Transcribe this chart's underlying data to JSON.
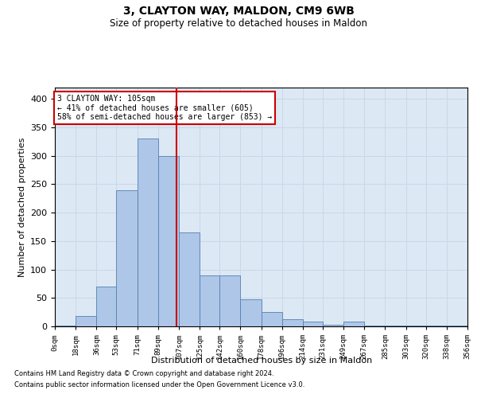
{
  "title1": "3, CLAYTON WAY, MALDON, CM9 6WB",
  "title2": "Size of property relative to detached houses in Maldon",
  "xlabel": "Distribution of detached houses by size in Maldon",
  "ylabel": "Number of detached properties",
  "footer1": "Contains HM Land Registry data © Crown copyright and database right 2024.",
  "footer2": "Contains public sector information licensed under the Open Government Licence v3.0.",
  "annotation_line1": "3 CLAYTON WAY: 105sqm",
  "annotation_line2": "← 41% of detached houses are smaller (605)",
  "annotation_line3": "58% of semi-detached houses are larger (853) →",
  "property_size": 105,
  "bar_color": "#aec6e8",
  "bar_edge_color": "#5580b0",
  "grid_color": "#c8d8ea",
  "vline_color": "#cc0000",
  "annotation_box_edge": "#cc0000",
  "background_color": "#dce8f4",
  "xlim_min": 0,
  "xlim_max": 356,
  "ylim_min": 0,
  "ylim_max": 420,
  "yticks": [
    0,
    50,
    100,
    150,
    200,
    250,
    300,
    350,
    400
  ],
  "bin_edges": [
    0,
    18,
    36,
    53,
    71,
    89,
    107,
    125,
    142,
    160,
    178,
    196,
    214,
    231,
    249,
    267,
    285,
    303,
    320,
    338,
    356
  ],
  "bar_heights": [
    2,
    18,
    70,
    240,
    330,
    300,
    165,
    90,
    90,
    47,
    25,
    12,
    8,
    3,
    8,
    2,
    2,
    1,
    2,
    1
  ]
}
